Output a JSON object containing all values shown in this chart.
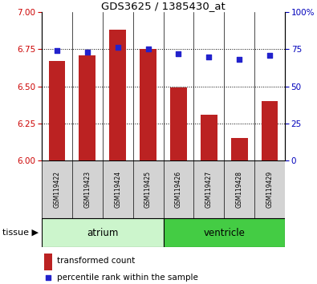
{
  "title": "GDS3625 / 1385430_at",
  "samples": [
    "GSM119422",
    "GSM119423",
    "GSM119424",
    "GSM119425",
    "GSM119426",
    "GSM119427",
    "GSM119428",
    "GSM119429"
  ],
  "bar_values": [
    6.67,
    6.71,
    6.88,
    6.75,
    6.49,
    6.31,
    6.15,
    6.4
  ],
  "percentile_values": [
    74,
    73,
    76,
    75,
    72,
    70,
    68,
    71
  ],
  "ylim_left": [
    6.0,
    7.0
  ],
  "ylim_right": [
    0,
    100
  ],
  "yticks_left": [
    6.0,
    6.25,
    6.5,
    6.75,
    7.0
  ],
  "yticks_right": [
    0,
    25,
    50,
    75,
    100
  ],
  "bar_color": "#bb2222",
  "dot_color": "#2222cc",
  "tissue_groups": [
    {
      "label": "atrium",
      "start": 0,
      "end": 3,
      "color": "#ccf5cc"
    },
    {
      "label": "ventricle",
      "start": 4,
      "end": 7,
      "color": "#44cc44"
    }
  ],
  "tissue_label": "tissue",
  "legend_bar_label": "transformed count",
  "legend_dot_label": "percentile rank within the sample",
  "grid_yticks": [
    6.25,
    6.5,
    6.75
  ],
  "bar_ytick_color": "#cc0000",
  "pct_ytick_color": "#0000bb",
  "sample_box_color": "#d3d3d3"
}
